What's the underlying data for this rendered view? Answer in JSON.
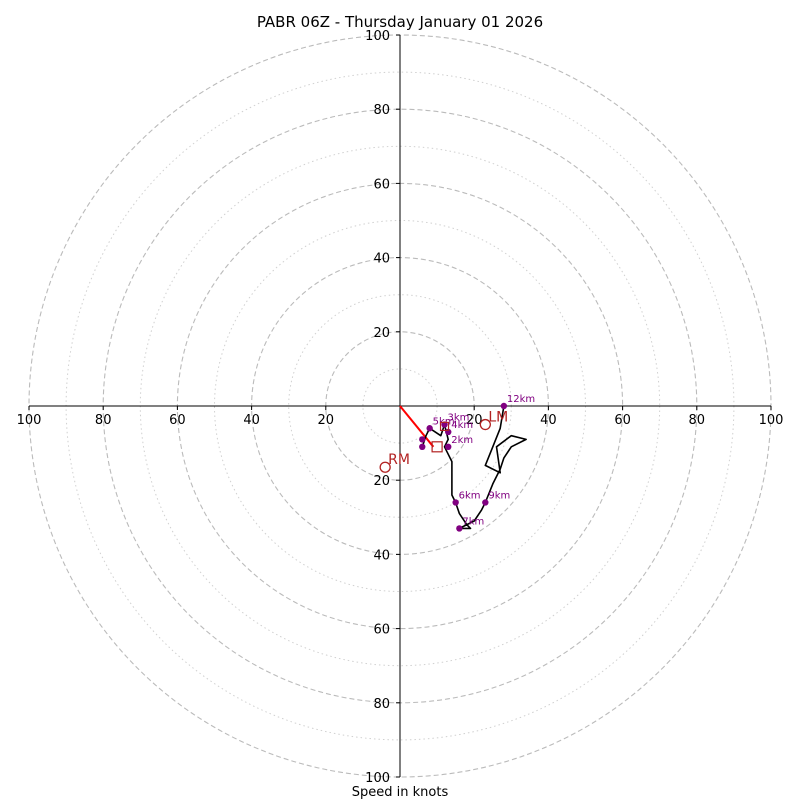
{
  "chart_data": {
    "type": "hodograph",
    "title": "PABR 06Z - Thursday January 01 2026",
    "xlabel": "Speed in knots",
    "xlim": [
      -100,
      100
    ],
    "ylim": [
      -100,
      100
    ],
    "rings_major": [
      20,
      40,
      60,
      80,
      100
    ],
    "rings_minor": [
      10,
      30,
      50,
      70,
      90
    ],
    "x_ticks": [
      -100,
      -80,
      -60,
      -40,
      -20,
      20,
      40,
      60,
      80,
      100
    ],
    "x_tick_labels": [
      "100",
      "80",
      "60",
      "40",
      "20",
      "20",
      "40",
      "60",
      "80",
      "100"
    ],
    "y_ticks": [
      100,
      80,
      60,
      40,
      20,
      -20,
      -40,
      -60,
      -80,
      -100
    ],
    "y_tick_labels": [
      "100",
      "80",
      "60",
      "40",
      "20",
      "20",
      "40",
      "60",
      "80",
      "100"
    ],
    "hodograph_line": [
      [
        6,
        -11
      ],
      [
        7,
        -8
      ],
      [
        8,
        -6
      ],
      [
        11,
        -8
      ],
      [
        12,
        -5
      ],
      [
        13,
        -9
      ],
      [
        12,
        -11
      ],
      [
        13,
        -13
      ],
      [
        14,
        -15
      ],
      [
        14,
        -20
      ],
      [
        14,
        -24
      ],
      [
        15,
        -26
      ],
      [
        16,
        -29
      ],
      [
        18,
        -32
      ],
      [
        19,
        -33
      ],
      [
        16,
        -33
      ],
      [
        20,
        -31
      ],
      [
        22,
        -28
      ],
      [
        23,
        -26
      ],
      [
        25,
        -21
      ],
      [
        27,
        -17
      ],
      [
        28,
        -14
      ],
      [
        30,
        -11
      ],
      [
        34,
        -9
      ],
      [
        30,
        -8
      ],
      [
        26,
        -11
      ],
      [
        27,
        -18
      ],
      [
        23,
        -16
      ],
      [
        25,
        -11
      ],
      [
        27,
        -6
      ],
      [
        28,
        0
      ]
    ],
    "height_levels": [
      {
        "label": "",
        "u": 6,
        "v": -11
      },
      {
        "label": "",
        "u": 6,
        "v": -9
      },
      {
        "label": "5km",
        "u": 8,
        "v": -6
      },
      {
        "label": "3km",
        "u": 12,
        "v": -5
      },
      {
        "label": "4km",
        "u": 13,
        "v": -7
      },
      {
        "label": "2km",
        "u": 13,
        "v": -11
      },
      {
        "label": "6km",
        "u": 15,
        "v": -26
      },
      {
        "label": "7km",
        "u": 16,
        "v": -33
      },
      {
        "label": "9km",
        "u": 23,
        "v": -26
      },
      {
        "label": "12km",
        "u": 28,
        "v": 0
      }
    ],
    "bunkers_motion": {
      "right_mover": {
        "label": "RM",
        "u": -4,
        "v": -16.5
      },
      "left_mover": {
        "label": "LM",
        "u": 23,
        "v": -5
      },
      "mean_wind": {
        "label": "",
        "u": 10,
        "v": -11
      },
      "shear_marker": {
        "label": "",
        "u": 12,
        "v": -5.5
      }
    },
    "storm_relative_vector": {
      "from": [
        0,
        0
      ],
      "to": [
        9,
        -11
      ]
    },
    "colors": {
      "hodograph": "#000000",
      "levels": "#800080",
      "storm_motion": "#b22222",
      "vector": "#ff0000",
      "rings": "#bbbbbb",
      "axes": "#000000"
    }
  }
}
